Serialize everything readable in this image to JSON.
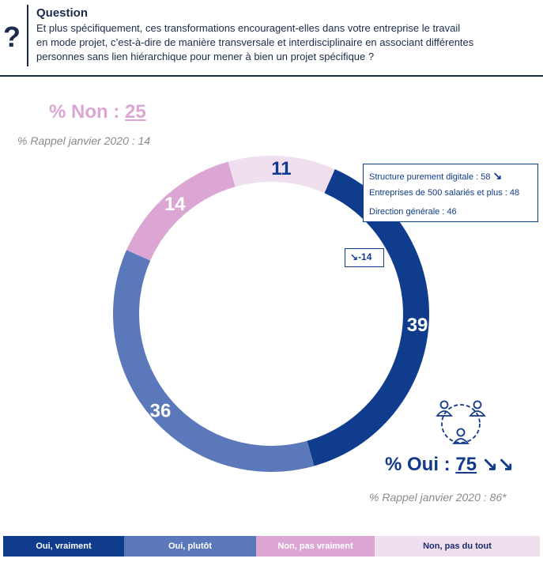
{
  "question": {
    "mark": "?",
    "title": "Question",
    "text_lines": [
      "Et plus spécifiquement, ces transformations encouragent-elles dans votre entreprise le travail",
      "en mode projet, c’est-à-dire de manière transversale et interdisciplinaire en associant différentes",
      "personnes sans lien hiérarchique pour mener à bien un projet spécifique ?"
    ]
  },
  "non": {
    "label": "% Non :",
    "value": "25",
    "rappel": "% Rappel janvier 2020 : 14"
  },
  "oui": {
    "label": "% Oui :",
    "value": "75",
    "arrows": "↘↘",
    "rappel": "% Rappel janvier 2020 : 86*"
  },
  "infobox": {
    "line1": "Structure purement digitale : 58",
    "line1_arrow": "↘",
    "line2": "Entreprises de 500 salariés et plus : 48",
    "line3": "Direction générale : 46"
  },
  "delta": {
    "arrow": "↘",
    "value": "-14"
  },
  "colors": {
    "oui_vraiment": "#0f3c8c",
    "oui_plutot": "#5b78bb",
    "non_pas_vraiment": "#dba6d3",
    "non_pas_du_tout": "#efdfef"
  },
  "chart_data": {
    "type": "pie",
    "donut": true,
    "slices": [
      {
        "label": "Oui, vraiment",
        "value": 39,
        "color": "#0f3c8c",
        "text_color": "#ffffff"
      },
      {
        "label": "Oui, plutôt",
        "value": 36,
        "color": "#5b78bb",
        "text_color": "#ffffff"
      },
      {
        "label": "Non, pas vraiment",
        "value": 14,
        "color": "#dba6d3",
        "text_color": "#ffffff"
      },
      {
        "label": "Non, pas du tout",
        "value": 11,
        "color": "#efdfef",
        "text_color": "#0f3c8c"
      }
    ],
    "legend_position": "bottom"
  },
  "legend": [
    {
      "label": "Oui, vraiment",
      "bg": "#0f3c8c",
      "fg": "#ffffff"
    },
    {
      "label": "Oui, plutôt",
      "bg": "#5b78bb",
      "fg": "#ffffff"
    },
    {
      "label": "Non, pas vraiment",
      "bg": "#dba6d3",
      "fg": "#ffffff"
    },
    {
      "label": "Non, pas du tout",
      "bg": "#efdfef",
      "fg": "#1b2b6b"
    }
  ]
}
